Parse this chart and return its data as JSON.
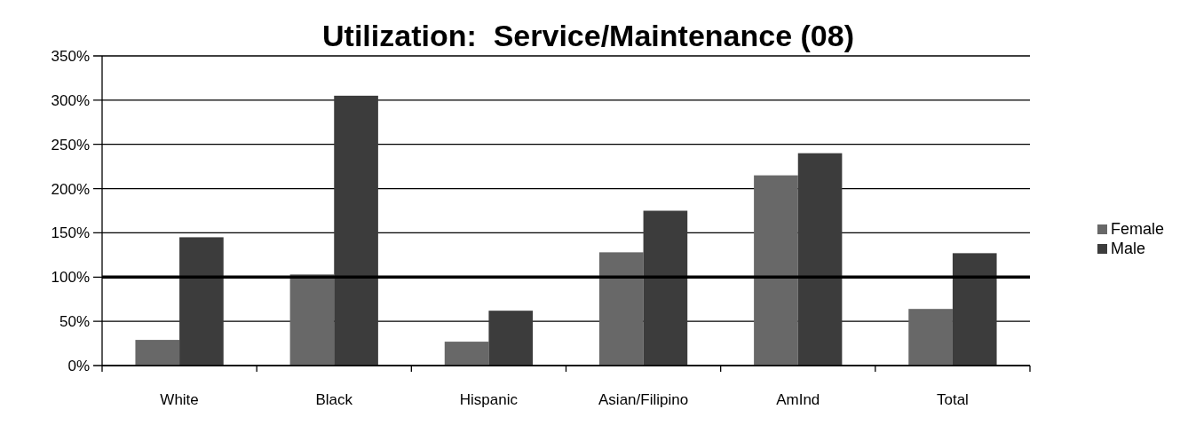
{
  "chart_data": {
    "type": "bar",
    "title": "Utilization:  Service/Maintenance (08)",
    "categories": [
      "White",
      "Black",
      "Hispanic",
      "Asian/Filipino",
      "AmInd",
      "Total"
    ],
    "series": [
      {
        "name": "Female",
        "color": "#686868",
        "values": [
          29,
          103,
          27,
          128,
          215,
          64
        ]
      },
      {
        "name": "Male",
        "color": "#3c3c3c",
        "values": [
          145,
          305,
          62,
          175,
          240,
          127
        ]
      }
    ],
    "ylim": [
      0,
      350
    ],
    "yticks": [
      {
        "value": 0,
        "label": "0%"
      },
      {
        "value": 50,
        "label": "50%"
      },
      {
        "value": 100,
        "label": "100%"
      },
      {
        "value": 150,
        "label": "150%"
      },
      {
        "value": 200,
        "label": "200%"
      },
      {
        "value": 250,
        "label": "250%"
      },
      {
        "value": 300,
        "label": "300%"
      },
      {
        "value": 350,
        "label": "350%"
      }
    ],
    "grid": "y",
    "legend": "right",
    "ref_lines": [
      {
        "axis": "y",
        "value": 100,
        "color": "#000000"
      }
    ]
  }
}
